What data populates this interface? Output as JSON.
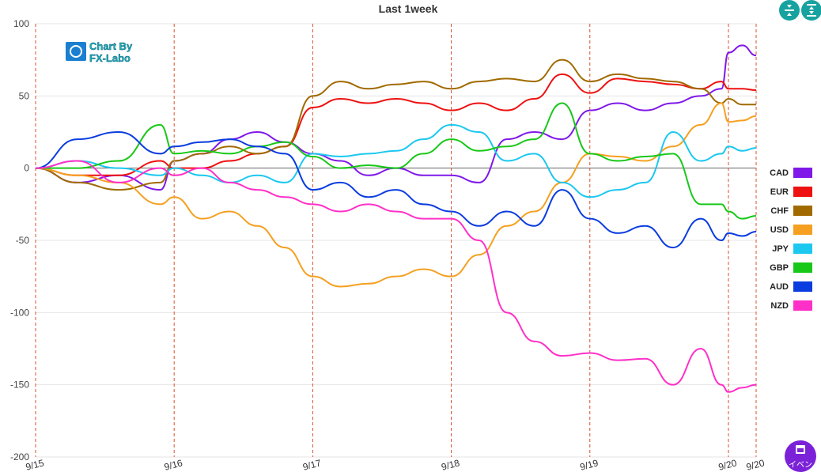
{
  "chart_data": {
    "type": "line",
    "title": "Last 1week",
    "ylim": [
      -200,
      100
    ],
    "yticks": [
      100,
      50,
      0,
      -50,
      -100,
      -150,
      -200
    ],
    "day_labels": [
      "9/15",
      "9/16",
      "9/17",
      "9/18",
      "9/19",
      "9/20",
      "9/20"
    ],
    "day_positions": [
      0,
      1,
      2,
      3,
      4,
      5,
      5.2
    ],
    "grid": true,
    "legend_position": "right",
    "series": [
      {
        "name": "CAD",
        "color": "#7f18e8",
        "x": [
          0,
          0.3,
          0.6,
          0.9,
          1.0,
          1.2,
          1.4,
          1.6,
          1.8,
          2.0,
          2.2,
          2.4,
          2.6,
          2.8,
          3.0,
          3.2,
          3.4,
          3.6,
          3.8,
          4.0,
          4.2,
          4.4,
          4.6,
          4.8,
          4.95,
          5.0,
          5.1,
          5.2
        ],
        "y": [
          0,
          -10,
          -5,
          -15,
          5,
          10,
          20,
          25,
          18,
          10,
          5,
          -5,
          0,
          -5,
          -5,
          -10,
          20,
          25,
          20,
          40,
          45,
          40,
          45,
          50,
          55,
          80,
          85,
          78
        ]
      },
      {
        "name": "EUR",
        "color": "#ee1111",
        "x": [
          0,
          0.3,
          0.6,
          0.9,
          1.0,
          1.2,
          1.4,
          1.6,
          1.8,
          2.0,
          2.2,
          2.4,
          2.6,
          2.8,
          3.0,
          3.2,
          3.4,
          3.6,
          3.8,
          4.0,
          4.2,
          4.4,
          4.6,
          4.8,
          4.95,
          5.0,
          5.1,
          5.2
        ],
        "y": [
          0,
          -5,
          -5,
          5,
          0,
          0,
          5,
          10,
          15,
          42,
          48,
          45,
          48,
          45,
          40,
          45,
          40,
          48,
          65,
          52,
          62,
          60,
          58,
          55,
          60,
          55,
          55,
          54
        ]
      },
      {
        "name": "CHF",
        "color": "#a06a00",
        "x": [
          0,
          0.3,
          0.6,
          0.9,
          1.0,
          1.2,
          1.4,
          1.6,
          1.8,
          2.0,
          2.2,
          2.4,
          2.6,
          2.8,
          3.0,
          3.2,
          3.4,
          3.6,
          3.8,
          4.0,
          4.2,
          4.4,
          4.6,
          4.8,
          4.95,
          5.0,
          5.1,
          5.2
        ],
        "y": [
          0,
          -10,
          -15,
          -10,
          5,
          10,
          15,
          10,
          15,
          50,
          60,
          55,
          58,
          60,
          55,
          60,
          62,
          60,
          75,
          60,
          65,
          62,
          60,
          55,
          45,
          48,
          44,
          44
        ]
      },
      {
        "name": "USD",
        "color": "#f5a020",
        "x": [
          0,
          0.3,
          0.6,
          0.9,
          1.0,
          1.2,
          1.4,
          1.6,
          1.8,
          2.0,
          2.2,
          2.4,
          2.6,
          2.8,
          3.0,
          3.2,
          3.4,
          3.6,
          3.8,
          4.0,
          4.2,
          4.4,
          4.6,
          4.8,
          4.95,
          5.0,
          5.1,
          5.2
        ],
        "y": [
          0,
          -5,
          -10,
          -25,
          -20,
          -35,
          -30,
          -40,
          -55,
          -75,
          -82,
          -80,
          -75,
          -70,
          -75,
          -60,
          -40,
          -30,
          -10,
          10,
          8,
          5,
          15,
          30,
          45,
          32,
          33,
          36
        ]
      },
      {
        "name": "JPY",
        "color": "#1cc8f0",
        "x": [
          0,
          0.3,
          0.6,
          0.9,
          1.0,
          1.2,
          1.4,
          1.6,
          1.8,
          2.0,
          2.2,
          2.4,
          2.6,
          2.8,
          3.0,
          3.2,
          3.4,
          3.6,
          3.8,
          4.0,
          4.2,
          4.4,
          4.6,
          4.8,
          4.95,
          5.0,
          5.1,
          5.2
        ],
        "y": [
          0,
          5,
          0,
          -5,
          0,
          -5,
          -10,
          -5,
          -10,
          10,
          8,
          10,
          12,
          20,
          30,
          25,
          5,
          10,
          -10,
          -20,
          -15,
          -10,
          25,
          5,
          10,
          15,
          12,
          14
        ]
      },
      {
        "name": "GBP",
        "color": "#18c818",
        "x": [
          0,
          0.3,
          0.6,
          0.9,
          1.0,
          1.2,
          1.4,
          1.6,
          1.8,
          2.0,
          2.2,
          2.4,
          2.6,
          2.8,
          3.0,
          3.2,
          3.4,
          3.6,
          3.8,
          4.0,
          4.2,
          4.4,
          4.6,
          4.8,
          4.95,
          5.0,
          5.1,
          5.2
        ],
        "y": [
          0,
          0,
          5,
          30,
          10,
          12,
          10,
          15,
          18,
          8,
          0,
          2,
          0,
          10,
          20,
          12,
          15,
          20,
          45,
          10,
          5,
          8,
          10,
          -25,
          -25,
          -30,
          -35,
          -33
        ]
      },
      {
        "name": "AUD",
        "color": "#0a3ce0",
        "x": [
          0,
          0.3,
          0.6,
          0.9,
          1.0,
          1.2,
          1.4,
          1.6,
          1.8,
          2.0,
          2.2,
          2.4,
          2.6,
          2.8,
          3.0,
          3.2,
          3.4,
          3.6,
          3.8,
          4.0,
          4.2,
          4.4,
          4.6,
          4.8,
          4.95,
          5.0,
          5.1,
          5.2
        ],
        "y": [
          0,
          20,
          25,
          10,
          15,
          18,
          20,
          15,
          10,
          -15,
          -10,
          -20,
          -15,
          -25,
          -30,
          -40,
          -30,
          -40,
          -15,
          -35,
          -45,
          -40,
          -55,
          -35,
          -50,
          -45,
          -47,
          -44
        ]
      },
      {
        "name": "NZD",
        "color": "#ff30c8",
        "x": [
          0,
          0.3,
          0.6,
          0.9,
          1.0,
          1.2,
          1.4,
          1.6,
          1.8,
          2.0,
          2.2,
          2.4,
          2.6,
          2.8,
          3.0,
          3.2,
          3.4,
          3.6,
          3.8,
          4.0,
          4.2,
          4.4,
          4.6,
          4.8,
          4.95,
          5.0,
          5.1,
          5.2
        ],
        "y": [
          0,
          5,
          -10,
          0,
          -5,
          0,
          -10,
          -15,
          -20,
          -25,
          -30,
          -25,
          -30,
          -35,
          -35,
          -50,
          -100,
          -120,
          -130,
          -128,
          -133,
          -132,
          -150,
          -125,
          -150,
          -155,
          -152,
          -150
        ]
      }
    ]
  },
  "logo": {
    "line1": "Chart By",
    "line2": "FX-Labo"
  },
  "controls": {
    "collapse_icon": "collapse-vertical-icon",
    "expand_icon": "expand-vertical-icon"
  },
  "event_button": {
    "label": "イベン",
    "icon": "calendar-icon"
  }
}
